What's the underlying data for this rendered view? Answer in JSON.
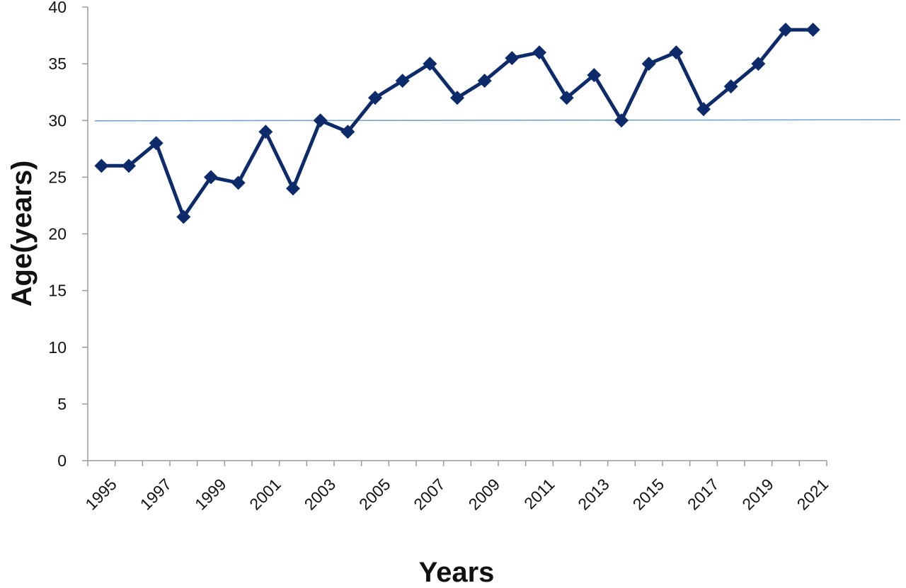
{
  "chart_data": {
    "type": "line",
    "title": "",
    "xlabel": "Years",
    "ylabel": "Age(years)",
    "ylim": [
      0,
      40
    ],
    "yticks": [
      "0",
      "5",
      "10",
      "15",
      "20",
      "25",
      "30",
      "35",
      "40"
    ],
    "xtick_labels": [
      "1995",
      "1997",
      "1999",
      "2001",
      "2003",
      "2005",
      "2007",
      "2009",
      "2011",
      "2013",
      "2015",
      "2017",
      "2019",
      "2021"
    ],
    "x": [
      1995,
      1996,
      1997,
      1998,
      1999,
      2000,
      2001,
      2002,
      2003,
      2004,
      2005,
      2006,
      2007,
      2008,
      2009,
      2010,
      2011,
      2012,
      2013,
      2014,
      2015,
      2016,
      2017,
      2018,
      2019,
      2020,
      2021
    ],
    "series": [
      {
        "values": [
          26,
          26,
          28,
          21.5,
          25,
          24.5,
          29,
          24,
          30,
          29,
          32,
          33.5,
          35,
          32,
          33.5,
          35.5,
          36,
          32,
          34,
          30,
          35,
          36,
          31,
          33,
          35,
          38,
          38
        ],
        "color": "#0d2b6b",
        "marker": "diamond"
      }
    ],
    "reference_line": {
      "y": 30,
      "color": "#6f9fd1"
    },
    "grid": false,
    "legend": false
  }
}
